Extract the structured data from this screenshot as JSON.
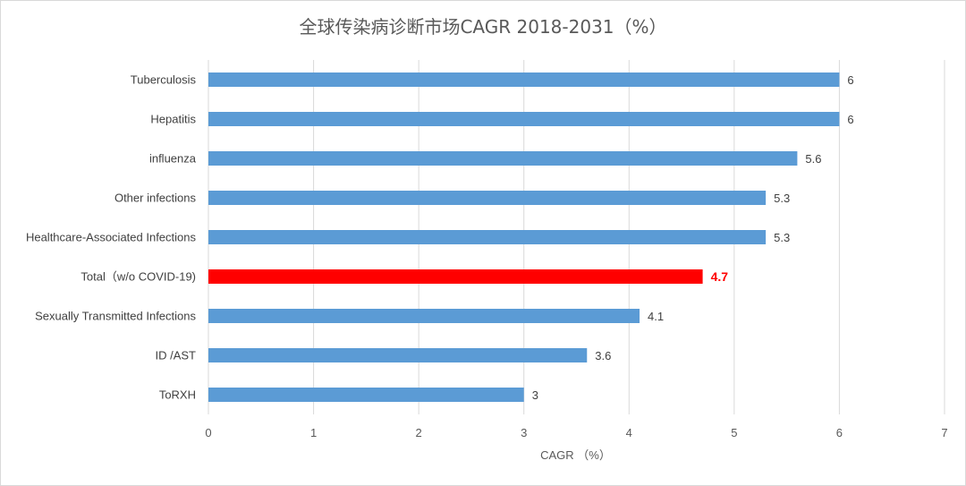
{
  "chart_data": {
    "type": "bar",
    "orientation": "horizontal",
    "title": "全球传染病诊断市场CAGR 2018-2031（%）",
    "xlabel": "CAGR （%）",
    "ylabel": "",
    "xlim": [
      0,
      7
    ],
    "xticks": [
      "0",
      "1",
      "2",
      "3",
      "4",
      "5",
      "6",
      "7"
    ],
    "grid": "vertical",
    "legend": "none",
    "categories": [
      "Tuberculosis",
      "Hepatitis",
      "influenza",
      "Other infections",
      "Healthcare-Associated Infections",
      "Total（w/o COVID-19)",
      "Sexually Transmitted Infections",
      "ID /AST",
      "ToRXH"
    ],
    "values": [
      6,
      6,
      5.6,
      5.3,
      5.3,
      4.7,
      4.1,
      3.6,
      3
    ],
    "data_labels": [
      "6",
      "6",
      "5.6",
      "5.3",
      "5.3",
      "4.7",
      "4.1",
      "3.6",
      "3"
    ],
    "highlight_index": 5,
    "colors": {
      "bar": "#5b9bd5",
      "highlight": "#ff0000",
      "grid": "#d9d9d9",
      "text": "#595959"
    }
  }
}
